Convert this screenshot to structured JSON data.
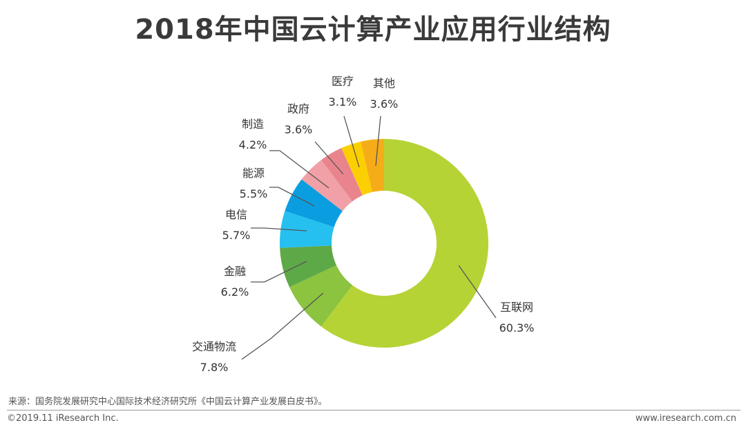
{
  "chart_data": {
    "type": "pie",
    "variant": "donut",
    "title": "2018年中国云计算产业应用行业结构",
    "slices": [
      {
        "label": "互联网",
        "value": 60.3,
        "value_text": "60.3%",
        "color": "#b5d335"
      },
      {
        "label": "交通物流",
        "value": 7.8,
        "value_text": "7.8%",
        "color": "#8cc33f"
      },
      {
        "label": "金融",
        "value": 6.2,
        "value_text": "6.2%",
        "color": "#5ea947"
      },
      {
        "label": "电信",
        "value": 5.7,
        "value_text": "5.7%",
        "color": "#25c0ef"
      },
      {
        "label": "能源",
        "value": 5.5,
        "value_text": "5.5%",
        "color": "#0a9ee0"
      },
      {
        "label": "制造",
        "value": 4.2,
        "value_text": "4.2%",
        "color": "#f0a0a6"
      },
      {
        "label": "政府",
        "value": 3.6,
        "value_text": "3.6%",
        "color": "#e9848d"
      },
      {
        "label": "医疗",
        "value": 3.1,
        "value_text": "3.1%",
        "color": "#fcd000"
      },
      {
        "label": "其他",
        "value": 3.6,
        "value_text": "3.6%",
        "color": "#f6ac18"
      }
    ]
  },
  "footer": {
    "source": "来源：国务院发展研究中心国际技术经济研究所《中国云计算产业发展白皮书》。",
    "copyright": "©2019.11 iResearch Inc.",
    "website": "www.iresearch.com.cn"
  }
}
